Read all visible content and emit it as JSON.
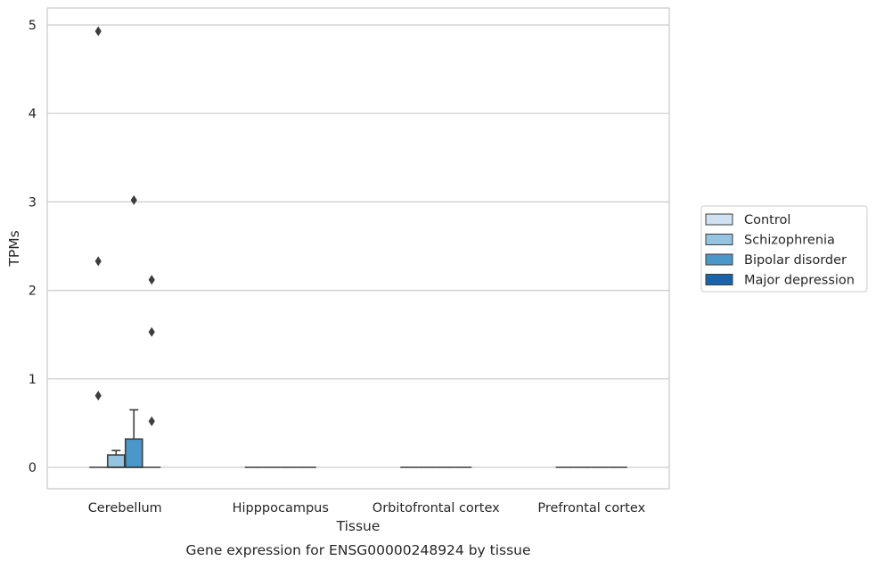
{
  "chart_data": {
    "type": "box",
    "title": "",
    "caption": "Gene expression for ENSG00000248924 by tissue",
    "xlabel": "Tissue",
    "ylabel": "TPMs",
    "ylim": [
      -0.25,
      5.2
    ],
    "yticks": [
      0,
      1,
      2,
      3,
      4,
      5
    ],
    "grid": true,
    "legend": "right",
    "categories": [
      "Cerebellum",
      "Hipppocampus",
      "Orbitofrontal cortex",
      "Prefrontal cortex"
    ],
    "series": [
      {
        "name": "Control",
        "color": "#d0e1f2",
        "boxes": [
          {
            "q1": 0,
            "median": 0,
            "q3": 0,
            "whisker_low": 0,
            "whisker_high": 0,
            "outliers": [
              4.93,
              2.33,
              0.81
            ]
          },
          {
            "q1": 0,
            "median": 0,
            "q3": 0,
            "whisker_low": 0,
            "whisker_high": 0,
            "outliers": []
          },
          {
            "q1": 0,
            "median": 0,
            "q3": 0,
            "whisker_low": 0,
            "whisker_high": 0,
            "outliers": []
          },
          {
            "q1": 0,
            "median": 0,
            "q3": 0,
            "whisker_low": 0,
            "whisker_high": 0,
            "outliers": []
          }
        ]
      },
      {
        "name": "Schizophrenia",
        "color": "#94c4df",
        "boxes": [
          {
            "q1": 0,
            "median": 0,
            "q3": 0.14,
            "whisker_low": 0,
            "whisker_high": 0.19,
            "outliers": []
          },
          {
            "q1": 0,
            "median": 0,
            "q3": 0,
            "whisker_low": 0,
            "whisker_high": 0,
            "outliers": []
          },
          {
            "q1": 0,
            "median": 0,
            "q3": 0,
            "whisker_low": 0,
            "whisker_high": 0,
            "outliers": []
          },
          {
            "q1": 0,
            "median": 0,
            "q3": 0,
            "whisker_low": 0,
            "whisker_high": 0,
            "outliers": []
          }
        ]
      },
      {
        "name": "Bipolar disorder",
        "color": "#4a98c9",
        "boxes": [
          {
            "q1": 0,
            "median": 0,
            "q3": 0.32,
            "whisker_low": 0,
            "whisker_high": 0.65,
            "outliers": [
              3.02
            ]
          },
          {
            "q1": 0,
            "median": 0,
            "q3": 0,
            "whisker_low": 0,
            "whisker_high": 0,
            "outliers": []
          },
          {
            "q1": 0,
            "median": 0,
            "q3": 0,
            "whisker_low": 0,
            "whisker_high": 0,
            "outliers": []
          },
          {
            "q1": 0,
            "median": 0,
            "q3": 0,
            "whisker_low": 0,
            "whisker_high": 0,
            "outliers": []
          }
        ]
      },
      {
        "name": "Major depression",
        "color": "#1764ab",
        "boxes": [
          {
            "q1": 0,
            "median": 0,
            "q3": 0,
            "whisker_low": 0,
            "whisker_high": 0,
            "outliers": [
              2.12,
              1.53,
              0.52
            ]
          },
          {
            "q1": 0,
            "median": 0,
            "q3": 0,
            "whisker_low": 0,
            "whisker_high": 0,
            "outliers": []
          },
          {
            "q1": 0,
            "median": 0,
            "q3": 0,
            "whisker_low": 0,
            "whisker_high": 0,
            "outliers": []
          },
          {
            "q1": 0,
            "median": 0,
            "q3": 0,
            "whisker_low": 0,
            "whisker_high": 0,
            "outliers": []
          }
        ]
      }
    ]
  }
}
